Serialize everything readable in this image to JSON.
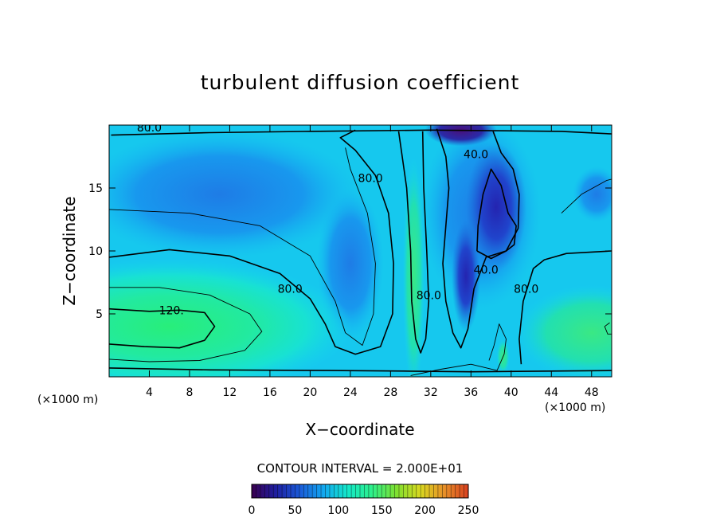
{
  "chart_data": {
    "type": "heatmap",
    "title": "turbulent diffusion coefficient",
    "xlabel": "X−coordinate",
    "ylabel": "Z−coordinate",
    "x_unit_left": "(×1000 m)",
    "x_unit_right": "(×1000 m)",
    "xlim": [
      0,
      50
    ],
    "ylim": [
      0,
      20
    ],
    "x_ticks": [
      4,
      8,
      12,
      16,
      20,
      24,
      28,
      32,
      36,
      40,
      44,
      48
    ],
    "x_tick_labels": [
      "4",
      "8",
      "12",
      "16",
      "20",
      "24",
      "28",
      "32",
      "36",
      "40",
      "44",
      "48"
    ],
    "y_ticks": [
      5,
      10,
      15
    ],
    "y_tick_labels": [
      "5",
      "10",
      "15"
    ],
    "contour_interval_text": "CONTOUR INTERVAL = 2.000E+01",
    "contour_interval": 20,
    "contour_labels": [
      {
        "text": "80.0",
        "x": 4,
        "y": 19.8
      },
      {
        "text": "80.0",
        "x": 26,
        "y": 15.8
      },
      {
        "text": "40.0",
        "x": 36.5,
        "y": 17.7
      },
      {
        "text": "80.0",
        "x": 18,
        "y": 7
      },
      {
        "text": "120.",
        "x": 6.2,
        "y": 5.3
      },
      {
        "text": "80.0",
        "x": 31.8,
        "y": 6.5
      },
      {
        "text": "40.0",
        "x": 37.5,
        "y": 8.5
      },
      {
        "text": "80.0",
        "x": 41.5,
        "y": 7
      }
    ],
    "colorbar": {
      "min": 0,
      "max": 250,
      "tick_values": [
        0,
        50,
        100,
        150,
        200,
        250
      ],
      "tick_labels": [
        "0",
        "50",
        "100",
        "150",
        "200",
        "250"
      ],
      "colors": [
        "#3a0050",
        "#1e1ea0",
        "#1a5ad8",
        "#12a8f0",
        "#14e8c8",
        "#2ef08a",
        "#7ee030",
        "#d8d820",
        "#e89028",
        "#d84020"
      ]
    },
    "field_description_values": {
      "background": 85,
      "lower_left_max": 125,
      "upper_right_min": 20
    },
    "contours": [
      {
        "level": 80,
        "points": [
          [
            0.2,
            19.2
          ],
          [
            10,
            19.4
          ],
          [
            20,
            19.5
          ],
          [
            32,
            19.6
          ],
          [
            45,
            19.5
          ],
          [
            50,
            19.3
          ]
        ]
      },
      {
        "level": 80,
        "points": [
          [
            0,
            9.5
          ],
          [
            6,
            10.1
          ],
          [
            12,
            9.6
          ],
          [
            17,
            8.2
          ],
          [
            20,
            6.2
          ],
          [
            21.5,
            4.2
          ],
          [
            22.5,
            2.4
          ],
          [
            24.5,
            1.8
          ],
          [
            27,
            2.4
          ],
          [
            28.2,
            5
          ],
          [
            28.3,
            9
          ],
          [
            27.8,
            13
          ],
          [
            26.5,
            16
          ],
          [
            24.5,
            18
          ],
          [
            23,
            19
          ],
          [
            24.5,
            19.6
          ]
        ]
      },
      {
        "level": 80,
        "points": [
          [
            28.8,
            19.5
          ],
          [
            29.6,
            15
          ],
          [
            30,
            10
          ],
          [
            30.1,
            6
          ],
          [
            30.5,
            3
          ],
          [
            31,
            1.9
          ],
          [
            31.5,
            3
          ],
          [
            31.8,
            6
          ],
          [
            31.6,
            10
          ],
          [
            31.3,
            15
          ],
          [
            31.2,
            19.5
          ]
        ]
      },
      {
        "level": 60,
        "points": [
          [
            0,
            13.3
          ],
          [
            8,
            13
          ],
          [
            15,
            12
          ],
          [
            20,
            9.6
          ],
          [
            22.5,
            6
          ],
          [
            23.5,
            3.5
          ],
          [
            25.2,
            2.5
          ],
          [
            26.3,
            5
          ],
          [
            26.5,
            9
          ],
          [
            25.7,
            13
          ],
          [
            24,
            16.5
          ],
          [
            23.5,
            18.2
          ]
        ]
      },
      {
        "level": 40,
        "points": [
          [
            32.6,
            19.7
          ],
          [
            33.5,
            17.5
          ],
          [
            33.8,
            15
          ],
          [
            33.5,
            12
          ],
          [
            33.2,
            9
          ],
          [
            33.5,
            6
          ],
          [
            34.2,
            3.5
          ],
          [
            35,
            2.3
          ],
          [
            35.7,
            3.8
          ],
          [
            36.3,
            7
          ],
          [
            37.5,
            9.5
          ],
          [
            39.5,
            10
          ],
          [
            40.7,
            11.8
          ],
          [
            40.8,
            14.5
          ],
          [
            40.2,
            16.5
          ],
          [
            39,
            17.8
          ],
          [
            38.2,
            19.5
          ]
        ]
      },
      {
        "level": 40,
        "points": [
          [
            36.6,
            10
          ],
          [
            36.7,
            12
          ],
          [
            37.2,
            14.5
          ],
          [
            38,
            16.5
          ],
          [
            39,
            15.2
          ],
          [
            39.7,
            13
          ],
          [
            40.5,
            12
          ],
          [
            40.3,
            10.5
          ],
          [
            39.5,
            10
          ],
          [
            38,
            9.4
          ],
          [
            36.6,
            10
          ]
        ]
      },
      {
        "level": 80,
        "points": [
          [
            41,
            1
          ],
          [
            40.8,
            3
          ],
          [
            41.2,
            6
          ],
          [
            42.2,
            8.6
          ],
          [
            43.3,
            9.3
          ],
          [
            45.5,
            9.8
          ],
          [
            50,
            10
          ]
        ]
      },
      {
        "level": 120,
        "points": [
          [
            0,
            5.4
          ],
          [
            4,
            5.2
          ],
          [
            7,
            5.3
          ],
          [
            9.5,
            5.1
          ],
          [
            10.5,
            4
          ],
          [
            9.5,
            2.9
          ],
          [
            7,
            2.3
          ],
          [
            3.5,
            2.4
          ],
          [
            0,
            2.6
          ]
        ]
      },
      {
        "level": 100,
        "points": [
          [
            0,
            7.1
          ],
          [
            5,
            7.1
          ],
          [
            10,
            6.5
          ],
          [
            14,
            5
          ],
          [
            15.2,
            3.6
          ],
          [
            13.5,
            2.1
          ],
          [
            9,
            1.3
          ],
          [
            4,
            1.2
          ],
          [
            0,
            1.4
          ]
        ]
      },
      {
        "level": 100,
        "points": [
          [
            30,
            0.1
          ],
          [
            33,
            0.6
          ],
          [
            36,
            1
          ],
          [
            38.6,
            0.5
          ],
          [
            39.3,
            1.8
          ],
          [
            39.5,
            3
          ],
          [
            38.8,
            4.2
          ],
          [
            38.3,
            2.5
          ],
          [
            37.8,
            1.3
          ]
        ]
      },
      {
        "level": 80,
        "points": [
          [
            0,
            0.7
          ],
          [
            10,
            0.55
          ],
          [
            22,
            0.5
          ],
          [
            30,
            0.45
          ],
          [
            36,
            0.4
          ],
          [
            50,
            0.5
          ]
        ]
      },
      {
        "level": 60,
        "points": [
          [
            45,
            13
          ],
          [
            47,
            14.5
          ],
          [
            49.5,
            15.6
          ],
          [
            50,
            15.7
          ]
        ]
      },
      {
        "level": 100,
        "points": [
          [
            49.8,
            4.3
          ],
          [
            49.3,
            4
          ],
          [
            49.6,
            3.4
          ],
          [
            50,
            3.4
          ]
        ]
      }
    ]
  }
}
